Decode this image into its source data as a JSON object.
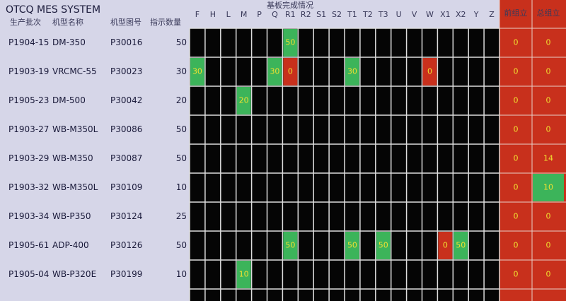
{
  "header": {
    "title": "OTCQ MES SYSTEM",
    "section": "基板完成情况"
  },
  "table": {
    "columns": [
      "生产批次",
      "机型名称",
      "机型图号",
      "指示数量"
    ],
    "stations": [
      "F",
      "H",
      "L",
      "M",
      "P",
      "Q",
      "R1",
      "R2",
      "S1",
      "S2",
      "T1",
      "T2",
      "T3",
      "U",
      "V",
      "W",
      "X1",
      "X2",
      "Y",
      "Z"
    ],
    "assembly_columns": [
      "前组立",
      "总组立"
    ],
    "rows": [
      {
        "cells": [
          "P1904-15",
          "DM-350",
          "P30016",
          "50"
        ],
        "stations": [
          {
            "station": "R1",
            "value": "50",
            "color": "#3cb45a"
          }
        ],
        "assembly": [
          {
            "value": "0",
            "color": "#c8301c"
          },
          {
            "value": "0",
            "color": "#c8301c"
          }
        ]
      },
      {
        "cells": [
          "P1903-19",
          "VRCMC-55",
          "P30023",
          "30"
        ],
        "stations": [
          {
            "station": "F",
            "value": "30",
            "color": "#3cb45a"
          },
          {
            "station": "Q",
            "value": "30",
            "color": "#3cb45a"
          },
          {
            "station": "R1",
            "value": "0",
            "color": "#c8301c"
          },
          {
            "station": "T1",
            "value": "30",
            "color": "#3cb45a"
          },
          {
            "station": "W",
            "value": "0",
            "color": "#c8301c"
          }
        ],
        "assembly": [
          {
            "value": "0",
            "color": "#c8301c"
          },
          {
            "value": "0",
            "color": "#c8301c"
          }
        ]
      },
      {
        "cells": [
          "P1905-23",
          "DM-500",
          "P30042",
          "20"
        ],
        "stations": [
          {
            "station": "M",
            "value": "20",
            "color": "#3cb45a"
          }
        ],
        "assembly": [
          {
            "value": "0",
            "color": "#c8301c"
          },
          {
            "value": "0",
            "color": "#c8301c"
          }
        ]
      },
      {
        "cells": [
          "P1903-27",
          "WB-M350L",
          "P30086",
          "50"
        ],
        "stations": [],
        "assembly": [
          {
            "value": "0",
            "color": "#c8301c"
          },
          {
            "value": "0",
            "color": "#c8301c"
          }
        ]
      },
      {
        "cells": [
          "P1903-29",
          "WB-M350",
          "P30087",
          "50"
        ],
        "stations": [],
        "assembly": [
          {
            "value": "0",
            "color": "#c8301c"
          },
          {
            "value": "14",
            "color": "#c8301c"
          }
        ]
      },
      {
        "cells": [
          "P1903-32",
          "WB-M350L",
          "P30109",
          "10"
        ],
        "stations": [],
        "assembly": [
          {
            "value": "0",
            "color": "#c8301c"
          },
          {
            "value": "10",
            "color": "#3cb45a"
          }
        ]
      },
      {
        "cells": [
          "P1903-34",
          "WB-P350",
          "P30124",
          "25"
        ],
        "stations": [],
        "assembly": [
          {
            "value": "0",
            "color": "#c8301c"
          },
          {
            "value": "0",
            "color": "#c8301c"
          }
        ]
      },
      {
        "cells": [
          "P1905-61",
          "ADP-400",
          "P30126",
          "50"
        ],
        "stations": [
          {
            "station": "R1",
            "value": "50",
            "color": "#3cb45a"
          },
          {
            "station": "T1",
            "value": "50",
            "color": "#3cb45a"
          },
          {
            "station": "T3",
            "value": "50",
            "color": "#3cb45a"
          },
          {
            "station": "X1",
            "value": "0",
            "color": "#c8301c"
          },
          {
            "station": "X2",
            "value": "50",
            "color": "#3cb45a"
          }
        ],
        "assembly": [
          {
            "value": "0",
            "color": "#c8301c"
          },
          {
            "value": "0",
            "color": "#c8301c"
          }
        ]
      },
      {
        "cells": [
          "P1905-04",
          "WB-P320E",
          "P30199",
          "10"
        ],
        "stations": [
          {
            "station": "M",
            "value": "10",
            "color": "#3cb45a"
          }
        ],
        "assembly": [
          {
            "value": "0",
            "color": "#c8301c"
          },
          {
            "value": "0",
            "color": "#c8301c"
          }
        ]
      }
    ]
  }
}
